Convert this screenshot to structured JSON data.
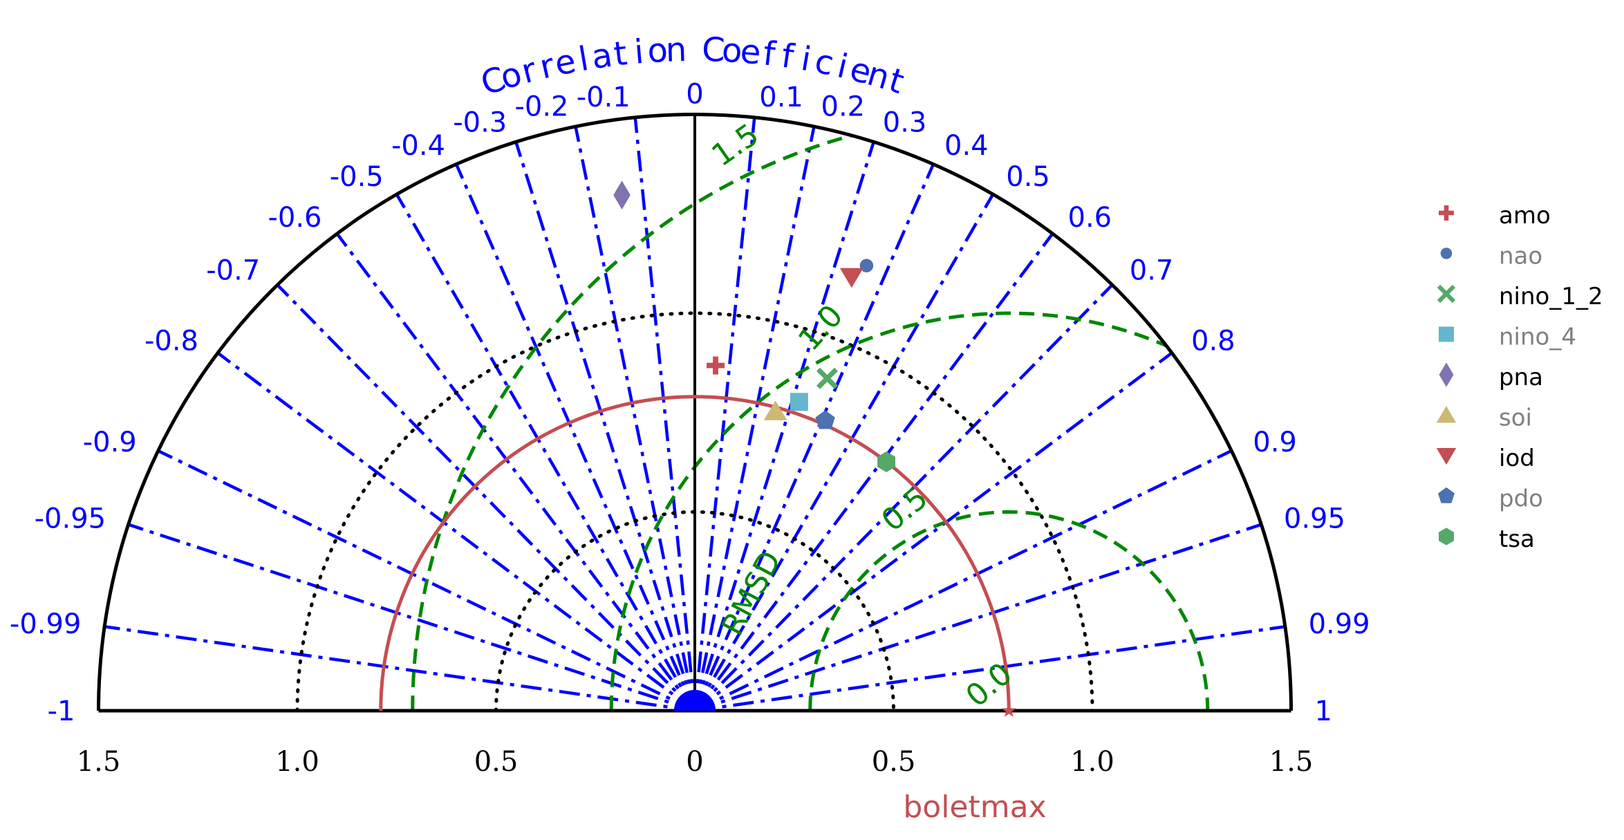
{
  "chart_data": {
    "type": "taylor-diagram",
    "title": "Correlation Coefficient",
    "xlabel": "boletmax",
    "rmsd_label": "RMSD",
    "axis": {
      "std_range": [
        -1.5,
        1.5
      ],
      "std_tick_values": [
        1.5,
        1.0,
        0.5,
        0,
        0.5,
        1.0,
        1.5
      ],
      "std_tick_positions": [
        -1.5,
        -1.0,
        -0.5,
        0,
        0.5,
        1.0,
        1.5
      ]
    },
    "correlation_ticks": [
      {
        "value": -1,
        "label": "-1"
      },
      {
        "value": -0.99,
        "label": "-0.99"
      },
      {
        "value": -0.95,
        "label": "-0.95"
      },
      {
        "value": -0.9,
        "label": "-0.9"
      },
      {
        "value": -0.8,
        "label": "-0.8"
      },
      {
        "value": -0.7,
        "label": "-0.7"
      },
      {
        "value": -0.6,
        "label": "-0.6"
      },
      {
        "value": -0.5,
        "label": "-0.5"
      },
      {
        "value": -0.4,
        "label": "-0.4"
      },
      {
        "value": -0.3,
        "label": "-0.3"
      },
      {
        "value": -0.2,
        "label": "-0.2"
      },
      {
        "value": -0.1,
        "label": "-0.1"
      },
      {
        "value": 0,
        "label": "0"
      },
      {
        "value": 0.1,
        "label": "0.1"
      },
      {
        "value": 0.2,
        "label": "0.2"
      },
      {
        "value": 0.3,
        "label": "0.3"
      },
      {
        "value": 0.4,
        "label": "0.4"
      },
      {
        "value": 0.5,
        "label": "0.5"
      },
      {
        "value": 0.6,
        "label": "0.6"
      },
      {
        "value": 0.7,
        "label": "0.7"
      },
      {
        "value": 0.8,
        "label": "0.8"
      },
      {
        "value": 0.9,
        "label": "0.9"
      },
      {
        "value": 0.95,
        "label": "0.95"
      },
      {
        "value": 0.99,
        "label": "0.99"
      },
      {
        "value": 1,
        "label": "1"
      }
    ],
    "std_contours": [
      0.5,
      1.0
    ],
    "reference": {
      "std": 0.79,
      "name": "boletmax"
    },
    "rmsd_contours": [
      {
        "value": 0.5,
        "label": "0.5"
      },
      {
        "value": 1.0,
        "label": "1.0"
      },
      {
        "value": 1.5,
        "label": "1.5"
      }
    ],
    "rmsd_zero_label": "0.0",
    "series": [
      {
        "name": "amo",
        "marker": "plus",
        "color": "#c44e52",
        "label_color": "#000000",
        "std": 0.87,
        "corr": 0.06
      },
      {
        "name": "nao",
        "marker": "circle",
        "color": "#4c72b0",
        "label_color": "#808080",
        "std": 1.2,
        "corr": 0.36
      },
      {
        "name": "nino_1_2",
        "marker": "x",
        "color": "#55a868",
        "label_color": "#000000",
        "std": 0.9,
        "corr": 0.37
      },
      {
        "name": "nino_4",
        "marker": "square",
        "color": "#64b5cd",
        "label_color": "#808080",
        "std": 0.82,
        "corr": 0.32
      },
      {
        "name": "pna",
        "marker": "diamond",
        "color": "#8172b2",
        "label_color": "#000000",
        "std": 1.31,
        "corr": -0.14
      },
      {
        "name": "soi",
        "marker": "triangle-up",
        "color": "#ccb974",
        "label_color": "#808080",
        "std": 0.78,
        "corr": 0.26
      },
      {
        "name": "iod",
        "marker": "triangle-down",
        "color": "#c44e52",
        "label_color": "#000000",
        "std": 1.16,
        "corr": 0.34
      },
      {
        "name": "pdo",
        "marker": "pentagon",
        "color": "#4c72b0",
        "label_color": "#808080",
        "std": 0.8,
        "corr": 0.41
      },
      {
        "name": "tsa",
        "marker": "hexagon",
        "color": "#55a868",
        "label_color": "#000000",
        "std": 0.79,
        "corr": 0.61
      }
    ],
    "grid": true,
    "legend_position": "right"
  },
  "colors": {
    "correlation": "#0000ff",
    "rmsd": "#008800",
    "reference": "#c44e52",
    "axis": "#000000"
  }
}
